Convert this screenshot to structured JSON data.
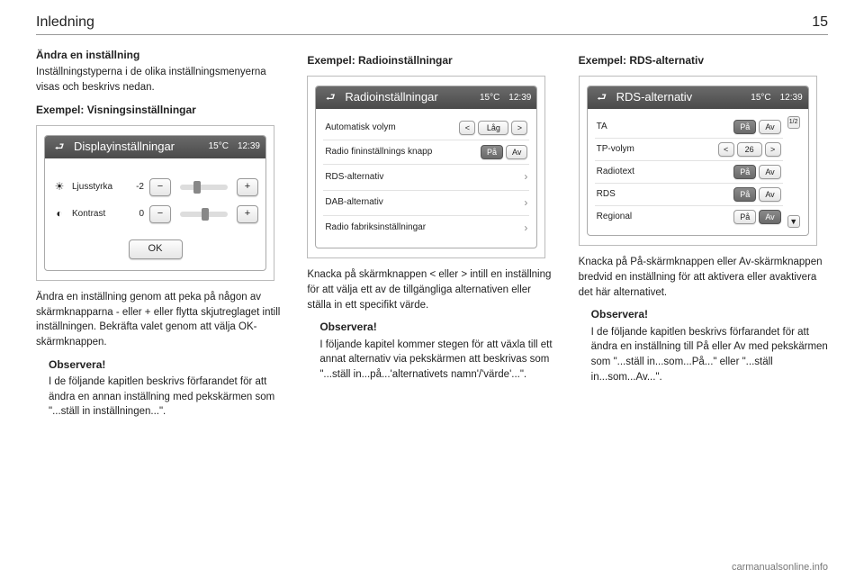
{
  "header": {
    "section": "Inledning",
    "page": "15"
  },
  "col1": {
    "h_change": "Ändra en inställning",
    "p_intro": "Inställningstyperna i de olika inställningsmenyerna visas och beskrivs nedan.",
    "h_example": "Exempel: Visningsinställningar",
    "display_panel": {
      "back_icon": "⮐",
      "title": "Displayinställningar",
      "temp": "15°C",
      "time": "12:39",
      "rows": [
        {
          "icon": "☀",
          "label": "Ljusstyrka",
          "value": "-2",
          "thumb_pct": 28
        },
        {
          "icon": "◐",
          "label": "Kontrast",
          "value": "0",
          "thumb_pct": 46
        }
      ],
      "minus": "−",
      "plus": "+",
      "ok": "OK"
    },
    "p_below": "Ändra en inställning genom att peka på någon av skärmknapparna - eller + eller flytta skjutreglaget intill inställningen. Bekräfta valet genom att välja OK-skärmknappen.",
    "observe_title": "Observera!",
    "observe_body": "I de följande kapitlen beskrivs förfarandet för att ändra en annan inställning med pekskärmen som \"...ställ in inställningen...\"."
  },
  "col2": {
    "h_example": "Exempel: Radioinställningar",
    "radio_panel": {
      "back_icon": "⮐",
      "title": "Radioinställningar",
      "temp": "15°C",
      "time": "12:39",
      "rows": [
        {
          "label": "Automatisk volym",
          "type": "spinner",
          "value": "Låg"
        },
        {
          "label": "Radio fininställnings knapp",
          "type": "onoff",
          "on": "På",
          "off": "Av",
          "sel": "on"
        },
        {
          "label": "RDS-alternativ",
          "type": "nav"
        },
        {
          "label": "DAB-alternativ",
          "type": "nav"
        },
        {
          "label": "Radio fabriksinställningar",
          "type": "nav"
        }
      ],
      "lt": "<",
      "gt": ">",
      "chev": "›"
    },
    "p_below": "Knacka på skärmknappen < eller > intill en inställning för att välja ett av de tillgängliga alternativen eller ställa in ett specifikt värde.",
    "observe_title": "Observera!",
    "observe_body": "I följande kapitel kommer stegen för att växla till ett annat alternativ via pekskärmen att beskrivas som \"...ställ in...på...'alternativets namn'/'värde'...\"."
  },
  "col3": {
    "h_example": "Exempel: RDS-alternativ",
    "rds_panel": {
      "back_icon": "⮐",
      "title": "RDS-alternativ",
      "temp": "15°C",
      "time": "12:39",
      "page_ind": "1/2",
      "rows": [
        {
          "label": "TA",
          "type": "onoff",
          "on": "På",
          "off": "Av",
          "sel": "on"
        },
        {
          "label": "TP-volym",
          "type": "spinner",
          "value": "26"
        },
        {
          "label": "Radiotext",
          "type": "onoff",
          "on": "På",
          "off": "Av",
          "sel": "on"
        },
        {
          "label": "RDS",
          "type": "onoff",
          "on": "På",
          "off": "Av",
          "sel": "on"
        },
        {
          "label": "Regional",
          "type": "onoff",
          "on": "På",
          "off": "Av",
          "sel": "off"
        }
      ],
      "lt": "<",
      "gt": ">",
      "down": "▼"
    },
    "p_below": "Knacka på På-skärmknappen eller Av-skärmknappen bredvid en inställning för att aktivera eller avaktivera det här alternativet.",
    "observe_title": "Observera!",
    "observe_body": "I de följande kapitlen beskrivs förfarandet för att ändra en inställning till På eller Av med pekskärmen som \"...ställ in...som...På...\" eller \"...ställ in...som...Av...\"."
  },
  "footer": "carmanualsonline.info"
}
